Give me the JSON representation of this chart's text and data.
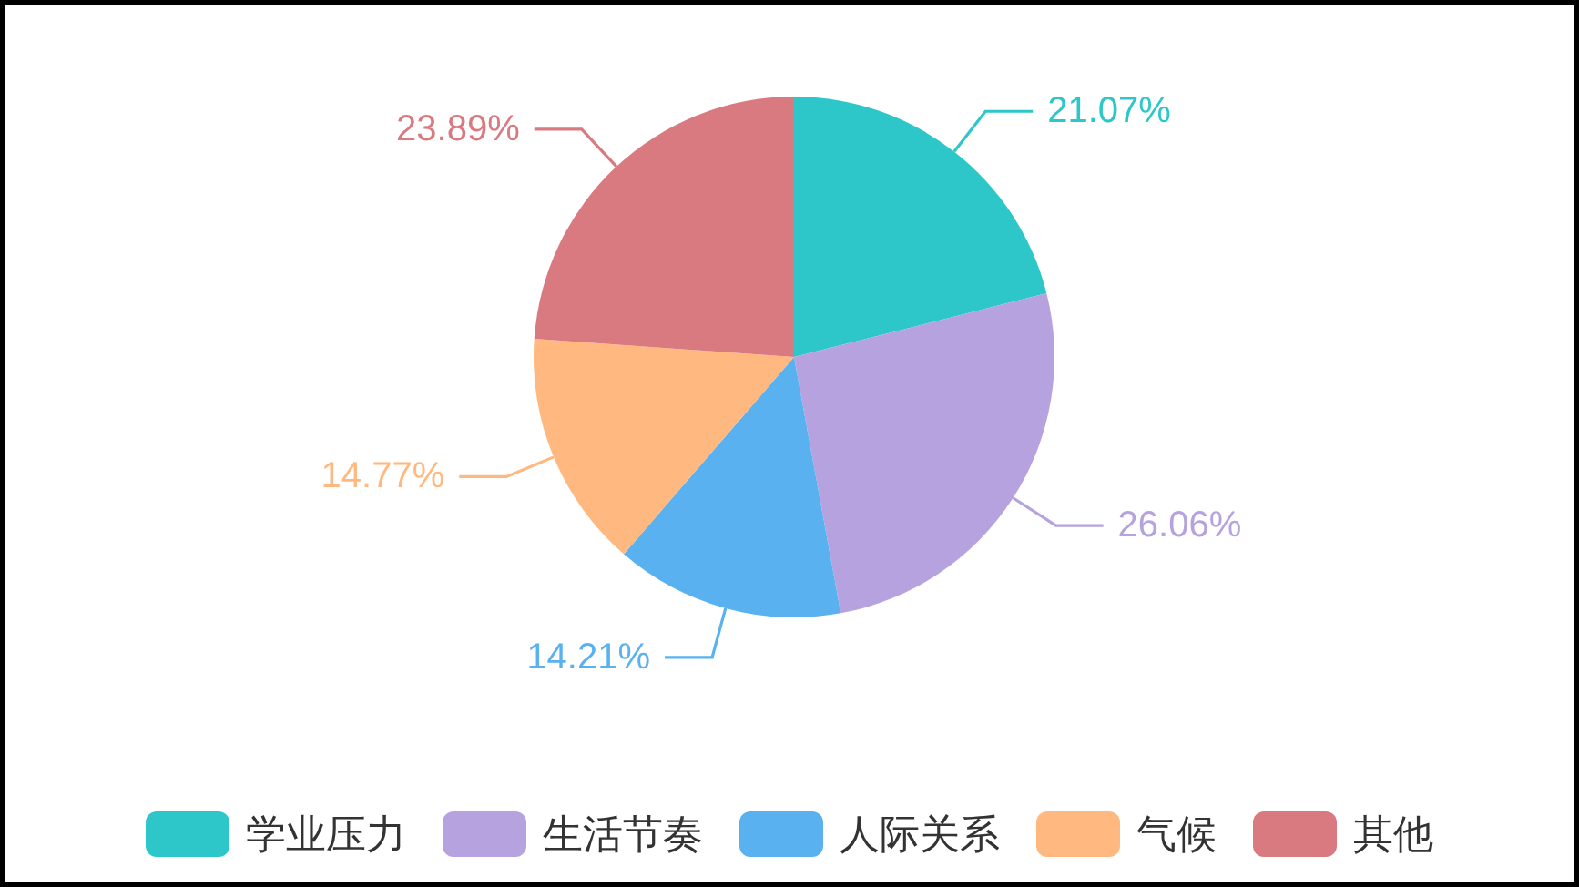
{
  "chart_data": {
    "type": "pie",
    "categories": [
      "学业压力",
      "生活节奏",
      "人际关系",
      "气候",
      "其他"
    ],
    "values": [
      21.07,
      26.06,
      14.21,
      14.77,
      23.89
    ],
    "colors": [
      "#2ec7c9",
      "#b6a2de",
      "#5ab1ef",
      "#ffb980",
      "#d87a80"
    ],
    "value_labels": [
      "21.07%",
      "26.06%",
      "14.21%",
      "14.77%",
      "23.89%"
    ],
    "legend": "bottom"
  }
}
